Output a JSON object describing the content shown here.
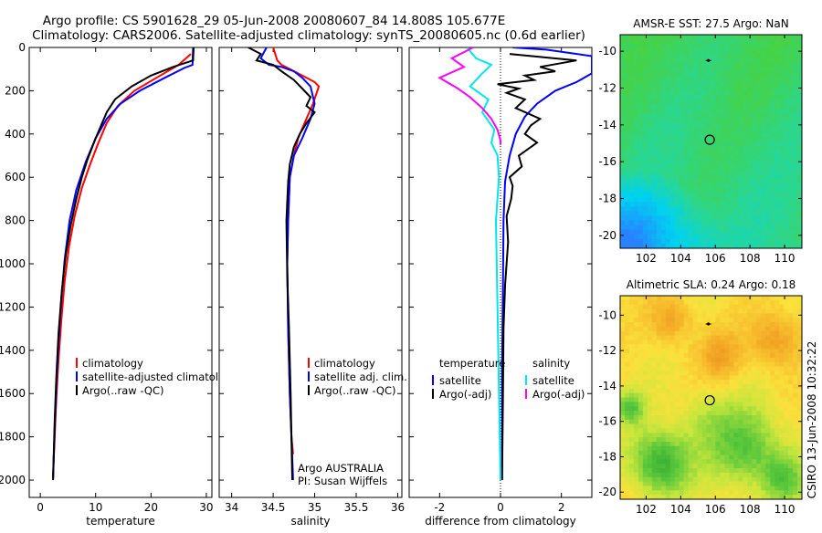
{
  "header": {
    "line1": "Argo profile: CS 5901628_29 05-Jun-2008 20080607_84 14.808S 105.677E",
    "line2": "Climatology: CARS2006. Satellite-adjusted climatology: synTS_20080605.nc (0.6d earlier)"
  },
  "side_label": "CSIRO 13-Jun-2008 10:32:22",
  "colors": {
    "red": "#ff0000",
    "blue": "#0000ff",
    "black": "#000000",
    "cyan": "#00e5ee",
    "magenta": "#ff00ff"
  },
  "chart_data": [
    {
      "id": "temperature",
      "type": "line",
      "xlabel": "temperature",
      "ylabel": "",
      "xlim": [
        -2,
        31
      ],
      "ylim": [
        0,
        2080
      ],
      "y_inverted": true,
      "xticks": [
        "0",
        "10",
        "20",
        "30"
      ],
      "yticks": [
        "0",
        "200",
        "400",
        "600",
        "800",
        "1000",
        "1200",
        "1400",
        "1600",
        "1800",
        "2000"
      ],
      "legend": {
        "placement": "lower-right",
        "entries": [
          "climatology",
          "satellite-adjusted climatology",
          "Argo(..raw -QC)"
        ]
      },
      "series": [
        {
          "name": "climatology",
          "color_key": "red",
          "x": [
            27.2,
            25,
            21,
            17,
            14,
            12,
            10.5,
            9,
            7.5,
            6.2,
            5.2,
            4.4,
            3.8,
            3.3,
            2.9,
            2.6,
            2.4,
            2.3
          ],
          "y": [
            30,
            80,
            140,
            200,
            270,
            350,
            440,
            540,
            650,
            780,
            920,
            1080,
            1260,
            1440,
            1620,
            1800,
            1920,
            1990
          ]
        },
        {
          "name": "satellite-adjusted climatology",
          "color_key": "blue",
          "x": [
            27.6,
            27.5,
            26,
            22.5,
            18,
            14.5,
            12,
            10,
            8.2,
            6.5,
            5.3,
            4.4,
            3.8,
            3.3,
            2.9,
            2.6,
            2.4,
            2.3
          ],
          "y": [
            0,
            80,
            95,
            140,
            200,
            260,
            330,
            420,
            530,
            660,
            800,
            980,
            1160,
            1360,
            1560,
            1760,
            1910,
            1990
          ]
        },
        {
          "name": "Argo(..raw -QC)",
          "color_key": "black",
          "x": [
            27.7,
            27.6,
            24,
            20,
            16.5,
            13.5,
            12,
            11,
            10,
            8.5,
            7.5,
            6.5,
            5.5,
            4.6,
            3.9,
            3.3,
            2.9,
            2.6,
            2.4,
            2.3
          ],
          "y": [
            0,
            60,
            90,
            130,
            180,
            240,
            300,
            360,
            420,
            520,
            600,
            700,
            820,
            960,
            1120,
            1320,
            1520,
            1720,
            1900,
            2000
          ]
        }
      ]
    },
    {
      "id": "salinity",
      "type": "line",
      "xlabel": "salinity",
      "ylabel": "",
      "xlim": [
        33.85,
        36.05
      ],
      "ylim": [
        0,
        2080
      ],
      "y_inverted": true,
      "xticks": [
        "34",
        "34.5",
        "35",
        "35.5",
        "36"
      ],
      "legend": {
        "placement": "lower-right",
        "entries": [
          "climatology",
          "satellite adj. clim.",
          "Argo(..raw -QC)"
        ]
      },
      "annotation": [
        "Argo AUSTRALIA",
        "PI: Susan Wijffels"
      ],
      "series": [
        {
          "name": "climatology",
          "color_key": "red",
          "x": [
            34.5,
            34.55,
            34.6,
            34.7,
            34.85,
            35.0,
            35.05,
            34.98,
            34.9,
            34.8,
            34.75,
            34.7,
            34.68,
            34.67,
            34.68,
            34.7,
            34.72,
            34.74
          ],
          "y": [
            0,
            60,
            80,
            100,
            130,
            160,
            180,
            260,
            330,
            420,
            500,
            600,
            800,
            1000,
            1300,
            1600,
            1800,
            1880
          ]
        },
        {
          "name": "satellite adj. clim.",
          "color_key": "blue",
          "x": [
            34.42,
            34.35,
            34.45,
            34.6,
            34.75,
            34.85,
            34.95,
            35.0,
            34.95,
            34.85,
            34.75,
            34.7,
            34.68,
            34.67,
            34.68,
            34.7,
            34.72,
            34.74
          ],
          "y": [
            0,
            50,
            80,
            90,
            110,
            140,
            180,
            260,
            330,
            420,
            500,
            600,
            800,
            1000,
            1300,
            1600,
            1800,
            2000
          ]
        },
        {
          "name": "Argo(..raw -QC)",
          "color_key": "black",
          "x": [
            34.2,
            34.35,
            34.3,
            34.5,
            34.6,
            34.75,
            34.85,
            34.95,
            34.9,
            35.0,
            34.9,
            34.82,
            34.75,
            34.7,
            34.68,
            34.66,
            34.67,
            34.69,
            34.71,
            34.73
          ],
          "y": [
            0,
            30,
            60,
            80,
            110,
            150,
            190,
            230,
            270,
            300,
            350,
            400,
            460,
            540,
            620,
            800,
            1050,
            1300,
            1600,
            2000
          ]
        }
      ]
    },
    {
      "id": "difference",
      "type": "line",
      "xlabel": "difference from climatology",
      "ylabel": "",
      "xlim": [
        -3,
        3
      ],
      "ylim": [
        0,
        2080
      ],
      "y_inverted": true,
      "xticks": [
        "-2",
        "0",
        "2"
      ],
      "legend": {
        "placement": "lower-center",
        "left_header": "temperature",
        "left_entries": [
          "satellite",
          "Argo(-adj)"
        ],
        "right_header": "salinity",
        "right_entries": [
          "satellite",
          "Argo(-adj)"
        ]
      },
      "series": [
        {
          "name": "temperature satellite",
          "color_key": "blue",
          "x": [
            0.4,
            1.5,
            3.0,
            3.0,
            2.5,
            1.8,
            1.2,
            0.8,
            0.5,
            0.3,
            0.15,
            0.1,
            0.08,
            0.05,
            0.05
          ],
          "y": [
            0,
            10,
            40,
            120,
            160,
            200,
            260,
            320,
            400,
            500,
            620,
            800,
            1100,
            1500,
            2000
          ]
        },
        {
          "name": "temperature Argo(-adj)",
          "color_key": "black",
          "x": [
            0.3,
            2.5,
            1.3,
            1.8,
            0.8,
            1.1,
            -0.1,
            0.6,
            0.2,
            0.8,
            0.5,
            1.3,
            1.0,
            0.8,
            1.2,
            0.6,
            0.7,
            0.3,
            0.4,
            0.35,
            0.2,
            0.25,
            0.15,
            0.1,
            0.08,
            0.05
          ],
          "y": [
            30,
            60,
            90,
            110,
            130,
            150,
            170,
            190,
            210,
            240,
            280,
            330,
            360,
            400,
            440,
            500,
            550,
            600,
            640,
            700,
            780,
            900,
            1100,
            1300,
            1600,
            2000
          ]
        },
        {
          "name": "salinity satellite",
          "color_key": "cyan",
          "x": [
            -1.1,
            -0.8,
            -0.3,
            -0.6,
            -1.0,
            -0.4,
            -0.6,
            -0.2,
            -0.3,
            -0.1,
            -0.05,
            -0.15,
            -0.1,
            0.0
          ],
          "y": [
            0,
            50,
            80,
            120,
            180,
            240,
            300,
            380,
            440,
            500,
            600,
            800,
            1200,
            2000
          ]
        },
        {
          "name": "salinity Argo(-adj)",
          "color_key": "magenta",
          "x": [
            -0.9,
            -1.6,
            -1.2,
            -2.0,
            -1.4,
            -1.0,
            -0.6,
            -0.3,
            -0.1,
            0.0,
            0.0
          ],
          "y": [
            0,
            50,
            90,
            140,
            190,
            230,
            280,
            330,
            380,
            430,
            450
          ]
        }
      ]
    },
    {
      "id": "sst_map",
      "type": "heatmap",
      "title": "AMSR-E SST: 27.5 Argo: NaN",
      "xlim": [
        100.5,
        111
      ],
      "ylim": [
        -20.7,
        -9.1
      ],
      "xticks": [
        "102",
        "104",
        "106",
        "108",
        "110"
      ],
      "yticks": [
        "-10",
        "-12",
        "-14",
        "-16",
        "-18",
        "-20"
      ],
      "float_position": [
        105.677,
        -14.808
      ],
      "track_marker": [
        105.6,
        -10.5
      ]
    },
    {
      "id": "sla_map",
      "type": "heatmap",
      "title": "Altimetric SLA: 0.24 Argo: 0.18",
      "xlim": [
        100.5,
        111
      ],
      "ylim": [
        -20.4,
        -8.9
      ],
      "xticks": [
        "102",
        "104",
        "106",
        "108",
        "110"
      ],
      "yticks": [
        "-10",
        "-12",
        "-14",
        "-16",
        "-18",
        "-20"
      ],
      "float_position": [
        105.677,
        -14.808
      ],
      "track_marker": [
        105.6,
        -10.5
      ]
    }
  ]
}
